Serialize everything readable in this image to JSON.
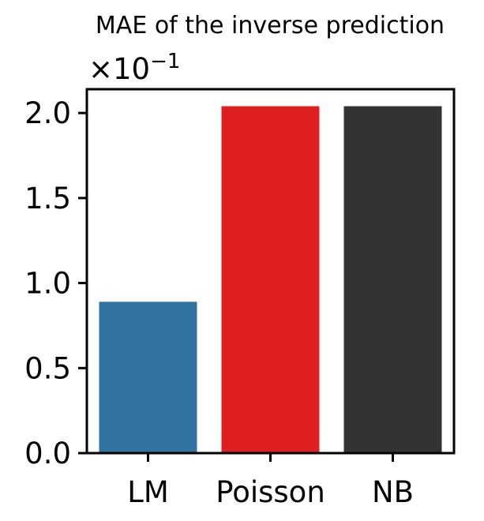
{
  "chart_data": {
    "type": "bar",
    "title": "MAE of the inverse prediction",
    "scale_label": "×10",
    "scale_exponent": "−1",
    "xlabel": "",
    "ylabel": "",
    "categories": [
      "LM",
      "Poisson",
      "NB"
    ],
    "values": [
      0.89,
      2.04,
      2.04
    ],
    "colors": [
      "#3274a1",
      "#e02020",
      "#333333"
    ],
    "ylim": [
      0,
      2.14
    ],
    "yticks": [
      0.0,
      0.5,
      1.0,
      1.5,
      2.0
    ],
    "ytick_labels": [
      "0.0",
      "0.5",
      "1.0",
      "1.5",
      "2.0"
    ],
    "grid": false,
    "legend": "none"
  }
}
